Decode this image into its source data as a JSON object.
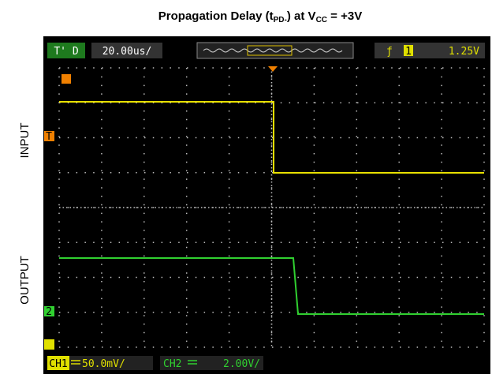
{
  "title": {
    "parts": [
      "Propagation Delay (t",
      "PD-",
      ") at V",
      "CC",
      " = +3V"
    ]
  },
  "labels": {
    "input": "INPUT",
    "output": "OUTPUT"
  },
  "scope": {
    "mode": "T' D",
    "timebase": "20.00us/",
    "trigger_channel": "1",
    "trigger_level": "1.25V",
    "ch1_label": "CH1",
    "ch1_scale": "50.0mV/",
    "ch2_label": "CH2",
    "ch2_scale": "2.00V/",
    "trigger_marker": "T",
    "ch2_marker": "2"
  }
}
